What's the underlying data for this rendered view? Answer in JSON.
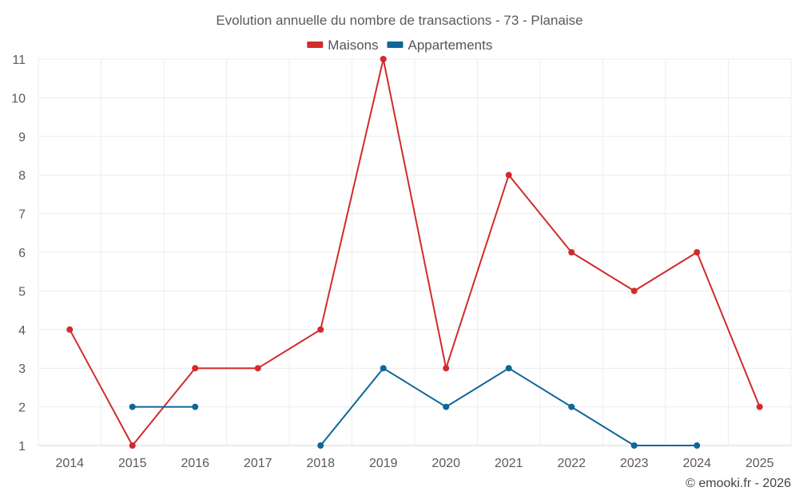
{
  "chart_data": {
    "type": "line",
    "title": "Evolution annuelle du nombre de transactions - 73 - Planaise",
    "categories": [
      "2014",
      "2015",
      "2016",
      "2017",
      "2018",
      "2019",
      "2020",
      "2021",
      "2022",
      "2023",
      "2024",
      "2025"
    ],
    "ylim": [
      1,
      11
    ],
    "yticks": [
      1,
      2,
      3,
      4,
      5,
      6,
      7,
      8,
      9,
      10,
      11
    ],
    "grid": true,
    "legend_position": "top-center",
    "series": [
      {
        "name": "Maisons",
        "color": "#d12b2b",
        "values": [
          4,
          1,
          3,
          3,
          4,
          11,
          3,
          8,
          6,
          5,
          6,
          2
        ]
      },
      {
        "name": "Appartements",
        "color": "#0e6699",
        "values": [
          null,
          2,
          2,
          null,
          1,
          3,
          2,
          3,
          2,
          1,
          1,
          null
        ]
      }
    ]
  },
  "credit": "© emooki.fr - 2026"
}
